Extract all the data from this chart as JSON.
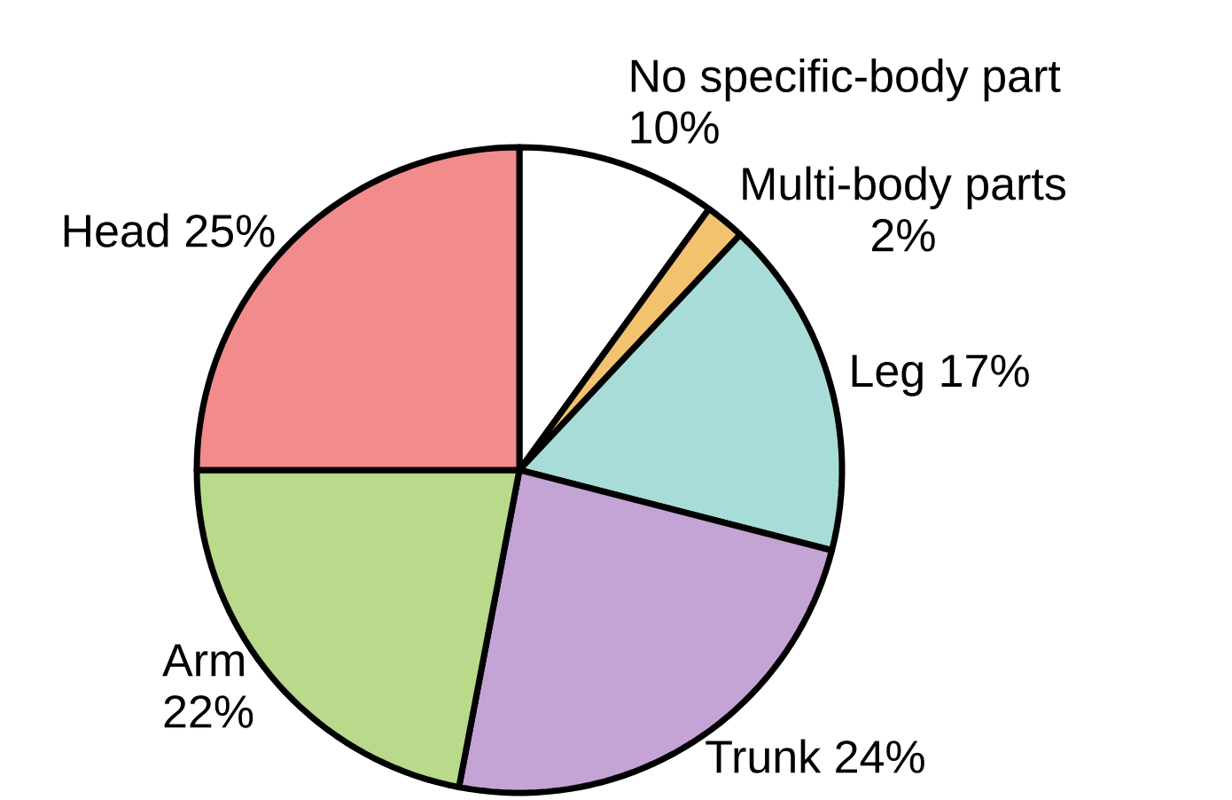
{
  "chart_data": {
    "type": "pie",
    "categories": [
      "No specific-body part",
      "Multi-body parts",
      "Leg",
      "Trunk",
      "Arm",
      "Head"
    ],
    "values": [
      10,
      2,
      17,
      24,
      22,
      25
    ],
    "value_labels": [
      "10%",
      "2%",
      "17%",
      "24%",
      "22%",
      "25%"
    ],
    "colors": [
      "#ffffff",
      "#f2c26e",
      "#a8dcd9",
      "#c4a4d4",
      "#b9d98b",
      "#f28b8b"
    ],
    "legend": false
  }
}
